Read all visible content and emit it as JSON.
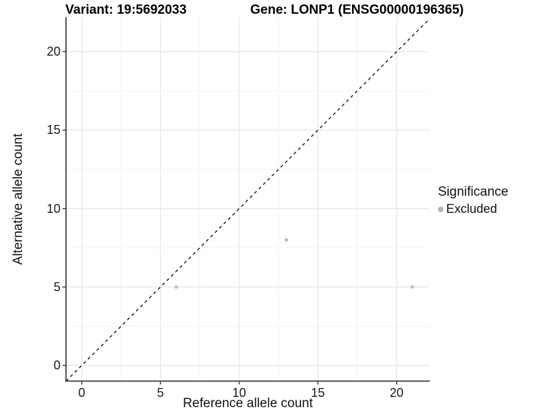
{
  "chart_data": {
    "type": "scatter",
    "title": "Variant: 19:5692033        Gene: LONP1 (ENSG00000196365)",
    "title_left": "Variant: 19:5692033",
    "title_right": "Gene: LONP1 (ENSG00000196365)",
    "xlabel": "Reference allele count",
    "ylabel": "Alternative allele count",
    "axes": {
      "xlim": [
        -1,
        22.1
      ],
      "ylim": [
        -1,
        22.2
      ],
      "x_ticks": [
        0,
        5,
        10,
        15,
        20
      ],
      "y_ticks": [
        0,
        5,
        10,
        15,
        20
      ],
      "x_minor": [
        2.5,
        7.5,
        12.5,
        17.5
      ],
      "y_minor": [
        2.5,
        7.5,
        12.5,
        17.5
      ],
      "grid": "major+minor"
    },
    "series": [
      {
        "name": "Excluded",
        "marker": "circle",
        "color": "#bfbfbf",
        "point_radius": 2.6,
        "points": [
          {
            "x": 6,
            "y": 5
          },
          {
            "x": 13,
            "y": 8
          },
          {
            "x": 21,
            "y": 5
          }
        ]
      }
    ],
    "reference_line": {
      "type": "identity y = x",
      "linetype": "dashed",
      "color": "#111111"
    },
    "legend": {
      "title": "Significance",
      "position": "right",
      "items": [
        {
          "label": "Excluded",
          "marker": "circle",
          "color": "#b3b3b3"
        }
      ]
    },
    "style": {
      "panel_background": "#ffffff",
      "grid_major_color": "#e6e6e6",
      "grid_minor_color": "#f2f2f2",
      "axis_line_color": "#404040",
      "tick_mark_color": "#333333",
      "tick_label_color": "#1a1a1a",
      "title_color": "#000000"
    }
  }
}
